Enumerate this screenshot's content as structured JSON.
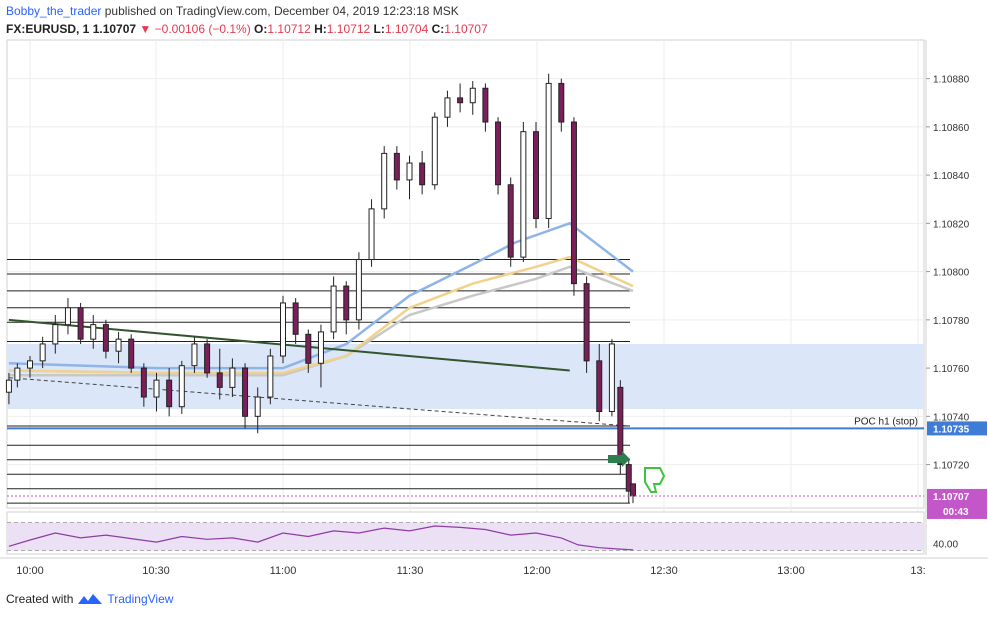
{
  "header": {
    "author": "Bobby_the_trader",
    "published": "published on TradingView.com, December 04, 2019 12:23:18 MSK"
  },
  "ohlc": {
    "symbol": "FX:EURUSD, 1",
    "last": "1.10707",
    "change": "▼ −0.00106 (−0.1%)",
    "o_label": "O:",
    "o": "1.10712",
    "h_label": "H:",
    "h": "1.10712",
    "l_label": "L:",
    "l": "1.10704",
    "c_label": "C:",
    "c": "1.10707"
  },
  "footer": {
    "created_with": "Created with",
    "brand": "TradingView"
  },
  "colors": {
    "up": "#ffffff",
    "down": "#7b1f5a",
    "candle_border": "#222222",
    "zone": "#dbe6f9",
    "poc_line": "#3f7cd6",
    "trendline": "#33552e",
    "ma_blue": "#8fb4e8",
    "ma_yellow": "#f0d28a",
    "ma_grey": "#c8c8c8",
    "rsi_line": "#8e3ba6",
    "rsi_band": "#ece0f4",
    "last_price_label": "#c356c8"
  },
  "chart_data": {
    "type": "candlestick",
    "symbol": "FX:EURUSD",
    "timeframe": "1",
    "x_ticks": [
      "10:00",
      "10:30",
      "11:00",
      "11:30",
      "12:00",
      "12:30",
      "13:00",
      "13:"
    ],
    "y_ticks": [
      "1.10880",
      "1.10860",
      "1.10840",
      "1.10820",
      "1.10800",
      "1.10780",
      "1.10760",
      "1.10740",
      "1.10720"
    ],
    "ylim": [
      1.10702,
      1.10896
    ],
    "price_labels": {
      "poc_value": "1.10735",
      "last_value": "1.10707",
      "countdown": "00:43"
    },
    "annotations": {
      "poc": "POC h1 (stop)"
    },
    "zone": [
      1.10743,
      1.1077
    ],
    "horizontal_levels": [
      1.10805,
      1.10799,
      1.10792,
      1.10785,
      1.10779,
      1.10771,
      1.10736,
      1.10728,
      1.10722,
      1.10716,
      1.1071,
      1.10704
    ],
    "poc_level": 1.10735,
    "trendline": {
      "from": [
        "09:55",
        1.1078
      ],
      "to": [
        "12:08",
        1.10759
      ]
    },
    "dashed_line": {
      "from": [
        "09:55",
        1.10756
      ],
      "to": [
        "12:22",
        1.10736
      ]
    },
    "candles": [
      {
        "t": "09:55",
        "o": 1.1075,
        "h": 1.10758,
        "l": 1.10745,
        "c": 1.10755
      },
      {
        "t": "09:57",
        "o": 1.10755,
        "h": 1.10762,
        "l": 1.10752,
        "c": 1.1076
      },
      {
        "t": "10:00",
        "o": 1.1076,
        "h": 1.10765,
        "l": 1.10756,
        "c": 1.10763
      },
      {
        "t": "10:03",
        "o": 1.10763,
        "h": 1.10773,
        "l": 1.1076,
        "c": 1.1077
      },
      {
        "t": "10:06",
        "o": 1.1077,
        "h": 1.10782,
        "l": 1.10766,
        "c": 1.10778
      },
      {
        "t": "10:09",
        "o": 1.10778,
        "h": 1.10789,
        "l": 1.10774,
        "c": 1.10785
      },
      {
        "t": "10:12",
        "o": 1.10785,
        "h": 1.10787,
        "l": 1.1077,
        "c": 1.10772
      },
      {
        "t": "10:15",
        "o": 1.10772,
        "h": 1.10782,
        "l": 1.10768,
        "c": 1.10778
      },
      {
        "t": "10:18",
        "o": 1.10778,
        "h": 1.1078,
        "l": 1.10764,
        "c": 1.10767
      },
      {
        "t": "10:21",
        "o": 1.10767,
        "h": 1.10775,
        "l": 1.10762,
        "c": 1.10772
      },
      {
        "t": "10:24",
        "o": 1.10772,
        "h": 1.10774,
        "l": 1.10758,
        "c": 1.1076
      },
      {
        "t": "10:27",
        "o": 1.1076,
        "h": 1.10762,
        "l": 1.10744,
        "c": 1.10748
      },
      {
        "t": "10:30",
        "o": 1.10748,
        "h": 1.10758,
        "l": 1.10742,
        "c": 1.10755
      },
      {
        "t": "10:33",
        "o": 1.10755,
        "h": 1.1076,
        "l": 1.1074,
        "c": 1.10744
      },
      {
        "t": "10:36",
        "o": 1.10744,
        "h": 1.10763,
        "l": 1.10741,
        "c": 1.10761
      },
      {
        "t": "10:39",
        "o": 1.10761,
        "h": 1.10773,
        "l": 1.10758,
        "c": 1.1077
      },
      {
        "t": "10:42",
        "o": 1.1077,
        "h": 1.10772,
        "l": 1.10756,
        "c": 1.10758
      },
      {
        "t": "10:45",
        "o": 1.10758,
        "h": 1.10768,
        "l": 1.10747,
        "c": 1.10752
      },
      {
        "t": "10:48",
        "o": 1.10752,
        "h": 1.10764,
        "l": 1.10748,
        "c": 1.1076
      },
      {
        "t": "10:51",
        "o": 1.1076,
        "h": 1.10762,
        "l": 1.10735,
        "c": 1.1074
      },
      {
        "t": "10:54",
        "o": 1.1074,
        "h": 1.10752,
        "l": 1.10733,
        "c": 1.10748
      },
      {
        "t": "10:57",
        "o": 1.10748,
        "h": 1.10768,
        "l": 1.10745,
        "c": 1.10765
      },
      {
        "t": "11:00",
        "o": 1.10765,
        "h": 1.1079,
        "l": 1.10762,
        "c": 1.10787
      },
      {
        "t": "11:03",
        "o": 1.10787,
        "h": 1.10789,
        "l": 1.1077,
        "c": 1.10774
      },
      {
        "t": "11:06",
        "o": 1.10774,
        "h": 1.10776,
        "l": 1.10758,
        "c": 1.10762
      },
      {
        "t": "11:09",
        "o": 1.10762,
        "h": 1.10778,
        "l": 1.10752,
        "c": 1.10775
      },
      {
        "t": "11:12",
        "o": 1.10775,
        "h": 1.10798,
        "l": 1.10772,
        "c": 1.10794
      },
      {
        "t": "11:15",
        "o": 1.10794,
        "h": 1.10796,
        "l": 1.10774,
        "c": 1.1078
      },
      {
        "t": "11:18",
        "o": 1.1078,
        "h": 1.10808,
        "l": 1.10776,
        "c": 1.10805
      },
      {
        "t": "11:21",
        "o": 1.10805,
        "h": 1.1083,
        "l": 1.10802,
        "c": 1.10826
      },
      {
        "t": "11:24",
        "o": 1.10826,
        "h": 1.10852,
        "l": 1.10822,
        "c": 1.10849
      },
      {
        "t": "11:27",
        "o": 1.10849,
        "h": 1.10852,
        "l": 1.10834,
        "c": 1.10838
      },
      {
        "t": "11:30",
        "o": 1.10838,
        "h": 1.10848,
        "l": 1.1083,
        "c": 1.10845
      },
      {
        "t": "11:33",
        "o": 1.10845,
        "h": 1.1085,
        "l": 1.10832,
        "c": 1.10836
      },
      {
        "t": "11:36",
        "o": 1.10836,
        "h": 1.10866,
        "l": 1.10834,
        "c": 1.10864
      },
      {
        "t": "11:39",
        "o": 1.10864,
        "h": 1.10875,
        "l": 1.1086,
        "c": 1.10872
      },
      {
        "t": "11:42",
        "o": 1.10872,
        "h": 1.10878,
        "l": 1.10866,
        "c": 1.1087
      },
      {
        "t": "11:45",
        "o": 1.1087,
        "h": 1.10879,
        "l": 1.10865,
        "c": 1.10876
      },
      {
        "t": "11:48",
        "o": 1.10876,
        "h": 1.10878,
        "l": 1.10858,
        "c": 1.10862
      },
      {
        "t": "11:51",
        "o": 1.10862,
        "h": 1.10864,
        "l": 1.10832,
        "c": 1.10836
      },
      {
        "t": "11:54",
        "o": 1.10836,
        "h": 1.10839,
        "l": 1.10802,
        "c": 1.10806
      },
      {
        "t": "11:57",
        "o": 1.10806,
        "h": 1.10862,
        "l": 1.10804,
        "c": 1.10858
      },
      {
        "t": "12:00",
        "o": 1.10858,
        "h": 1.10862,
        "l": 1.10818,
        "c": 1.10822
      },
      {
        "t": "12:03",
        "o": 1.10822,
        "h": 1.10882,
        "l": 1.10818,
        "c": 1.10878
      },
      {
        "t": "12:06",
        "o": 1.10878,
        "h": 1.1088,
        "l": 1.10858,
        "c": 1.10862
      },
      {
        "t": "12:09",
        "o": 1.10862,
        "h": 1.10864,
        "l": 1.1079,
        "c": 1.10795
      },
      {
        "t": "12:12",
        "o": 1.10795,
        "h": 1.10798,
        "l": 1.10758,
        "c": 1.10763
      },
      {
        "t": "12:15",
        "o": 1.10763,
        "h": 1.1077,
        "l": 1.10738,
        "c": 1.10742
      },
      {
        "t": "12:18",
        "o": 1.10742,
        "h": 1.10772,
        "l": 1.1074,
        "c": 1.1077
      },
      {
        "t": "12:20",
        "o": 1.10752,
        "h": 1.10755,
        "l": 1.10716,
        "c": 1.1072
      },
      {
        "t": "12:22",
        "o": 1.1072,
        "h": 1.10722,
        "l": 1.10704,
        "c": 1.10709
      },
      {
        "t": "12:23",
        "o": 1.10712,
        "h": 1.10712,
        "l": 1.10704,
        "c": 1.10707
      }
    ],
    "ma_blue": [
      [
        "09:55",
        1.10762
      ],
      [
        "10:30",
        1.1076
      ],
      [
        "11:00",
        1.1076
      ],
      [
        "11:15",
        1.1077
      ],
      [
        "11:30",
        1.1079
      ],
      [
        "11:45",
        1.10803
      ],
      [
        "11:55",
        1.10812
      ],
      [
        "12:08",
        1.1082
      ],
      [
        "12:23",
        1.108
      ]
    ],
    "ma_yellow": [
      [
        "09:55",
        1.10759
      ],
      [
        "10:30",
        1.10758
      ],
      [
        "11:00",
        1.10758
      ],
      [
        "11:15",
        1.10765
      ],
      [
        "11:30",
        1.10785
      ],
      [
        "11:45",
        1.10795
      ],
      [
        "12:00",
        1.10802
      ],
      [
        "12:08",
        1.10806
      ],
      [
        "12:23",
        1.10794
      ]
    ],
    "ma_grey": [
      [
        "09:55",
        1.10757
      ],
      [
        "10:30",
        1.10757
      ],
      [
        "11:00",
        1.10757
      ],
      [
        "11:15",
        1.10765
      ],
      [
        "11:30",
        1.10782
      ],
      [
        "11:45",
        1.1079
      ],
      [
        "12:00",
        1.10797
      ],
      [
        "12:08",
        1.10802
      ],
      [
        "12:23",
        1.10792
      ]
    ],
    "rsi": {
      "tick": "40.00",
      "ylim": [
        25,
        85
      ],
      "values": [
        [
          "09:55",
          36
        ],
        [
          "10:00",
          45
        ],
        [
          "10:06",
          55
        ],
        [
          "10:12",
          48
        ],
        [
          "10:18",
          52
        ],
        [
          "10:24",
          47
        ],
        [
          "10:30",
          42
        ],
        [
          "10:36",
          50
        ],
        [
          "10:42",
          46
        ],
        [
          "10:48",
          48
        ],
        [
          "10:54",
          42
        ],
        [
          "11:00",
          55
        ],
        [
          "11:06",
          50
        ],
        [
          "11:12",
          58
        ],
        [
          "11:18",
          55
        ],
        [
          "11:24",
          62
        ],
        [
          "11:30",
          58
        ],
        [
          "11:36",
          65
        ],
        [
          "11:42",
          63
        ],
        [
          "11:48",
          60
        ],
        [
          "11:54",
          52
        ],
        [
          "12:00",
          55
        ],
        [
          "12:06",
          48
        ],
        [
          "12:10",
          38
        ],
        [
          "12:15",
          34
        ],
        [
          "12:20",
          32
        ],
        [
          "12:23",
          31
        ]
      ]
    }
  }
}
